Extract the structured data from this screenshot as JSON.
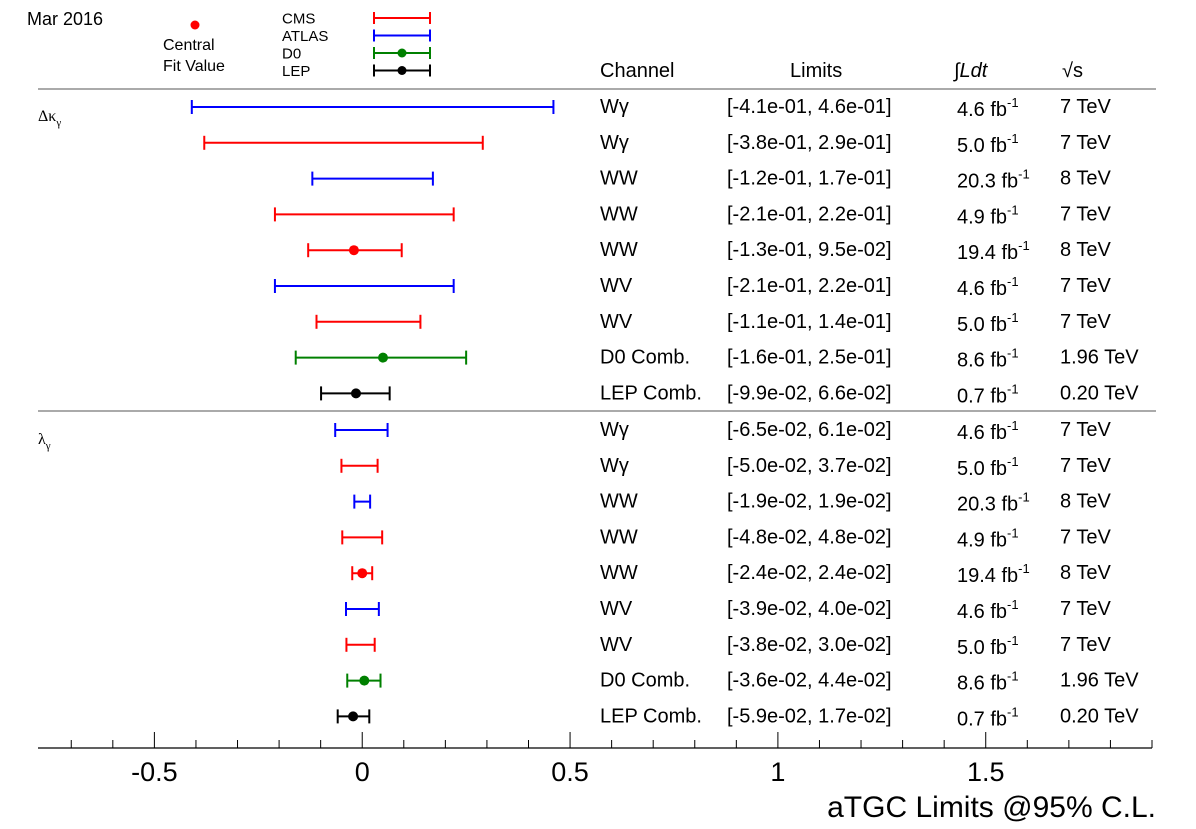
{
  "header": {
    "date": "Mar 2016",
    "central_fit_line1": "Central",
    "central_fit_line2": "Fit Value"
  },
  "legend": {
    "entries": [
      {
        "label": "CMS",
        "color": "#ff0000",
        "marker": false
      },
      {
        "label": "ATLAS",
        "color": "#0000ff",
        "marker": false
      },
      {
        "label": "D0",
        "color": "#008000",
        "marker": true
      },
      {
        "label": "LEP",
        "color": "#000000",
        "marker": true
      }
    ],
    "central_marker_color": "#ff0000"
  },
  "columns": {
    "channel": "Channel",
    "limits": "Limits",
    "lumi": "∫Ldt",
    "sqrt_s": "√s"
  },
  "footer": {
    "title": "aTGC Limits @95% C.L."
  },
  "chart_data": {
    "type": "interval",
    "title": "aTGC Limits @95% C.L.",
    "xlim": [
      -0.78,
      1.9
    ],
    "x_ticks": [
      -0.5,
      0,
      0.5,
      1,
      1.5
    ],
    "x_tick_labels": [
      "-0.5",
      "0",
      "0.5",
      "1",
      "1.5"
    ],
    "groups": [
      {
        "parameter": "Δκγ",
        "rows": [
          {
            "experiment": "ATLAS",
            "channel": "Wγ",
            "limits_text": "[-4.1e-01, 4.6e-01]",
            "lumi": "4.6",
            "energy": "7 TeV",
            "low": -0.41,
            "high": 0.46,
            "central": null
          },
          {
            "experiment": "CMS",
            "channel": "Wγ",
            "limits_text": "[-3.8e-01, 2.9e-01]",
            "lumi": "5.0",
            "energy": "7 TeV",
            "low": -0.38,
            "high": 0.29,
            "central": null
          },
          {
            "experiment": "ATLAS",
            "channel": "WW",
            "limits_text": "[-1.2e-01, 1.7e-01]",
            "lumi": "20.3",
            "energy": "8 TeV",
            "low": -0.12,
            "high": 0.17,
            "central": null
          },
          {
            "experiment": "CMS",
            "channel": "WW",
            "limits_text": "[-2.1e-01, 2.2e-01]",
            "lumi": "4.9",
            "energy": "7 TeV",
            "low": -0.21,
            "high": 0.22,
            "central": null
          },
          {
            "experiment": "CMS",
            "channel": "WW",
            "limits_text": "[-1.3e-01, 9.5e-02]",
            "lumi": "19.4",
            "energy": "8 TeV",
            "low": -0.13,
            "high": 0.095,
            "central": -0.02
          },
          {
            "experiment": "ATLAS",
            "channel": "WV",
            "limits_text": "[-2.1e-01, 2.2e-01]",
            "lumi": "4.6",
            "energy": "7 TeV",
            "low": -0.21,
            "high": 0.22,
            "central": null
          },
          {
            "experiment": "CMS",
            "channel": "WV",
            "limits_text": "[-1.1e-01, 1.4e-01]",
            "lumi": "5.0",
            "energy": "7 TeV",
            "low": -0.11,
            "high": 0.14,
            "central": null
          },
          {
            "experiment": "D0",
            "channel": "D0 Comb.",
            "limits_text": "[-1.6e-01, 2.5e-01]",
            "lumi": "8.6",
            "energy": "1.96 TeV",
            "low": -0.16,
            "high": 0.25,
            "central": 0.05
          },
          {
            "experiment": "LEP",
            "channel": "LEP Comb.",
            "limits_text": "[-9.9e-02, 6.6e-02]",
            "lumi": "0.7",
            "energy": "0.20 TeV",
            "low": -0.099,
            "high": 0.066,
            "central": -0.015
          }
        ]
      },
      {
        "parameter": "λγ",
        "rows": [
          {
            "experiment": "ATLAS",
            "channel": "Wγ",
            "limits_text": "[-6.5e-02, 6.1e-02]",
            "lumi": "4.6",
            "energy": "7 TeV",
            "low": -0.065,
            "high": 0.061,
            "central": null
          },
          {
            "experiment": "CMS",
            "channel": "Wγ",
            "limits_text": "[-5.0e-02, 3.7e-02]",
            "lumi": "5.0",
            "energy": "7 TeV",
            "low": -0.05,
            "high": 0.037,
            "central": null
          },
          {
            "experiment": "ATLAS",
            "channel": "WW",
            "limits_text": "[-1.9e-02, 1.9e-02]",
            "lumi": "20.3",
            "energy": "8 TeV",
            "low": -0.019,
            "high": 0.019,
            "central": null
          },
          {
            "experiment": "CMS",
            "channel": "WW",
            "limits_text": "[-4.8e-02, 4.8e-02]",
            "lumi": "4.9",
            "energy": "7 TeV",
            "low": -0.048,
            "high": 0.048,
            "central": null
          },
          {
            "experiment": "CMS",
            "channel": "WW",
            "limits_text": "[-2.4e-02, 2.4e-02]",
            "lumi": "19.4",
            "energy": "8 TeV",
            "low": -0.024,
            "high": 0.024,
            "central": 0.0
          },
          {
            "experiment": "ATLAS",
            "channel": "WV",
            "limits_text": "[-3.9e-02, 4.0e-02]",
            "lumi": "4.6",
            "energy": "7 TeV",
            "low": -0.039,
            "high": 0.04,
            "central": null
          },
          {
            "experiment": "CMS",
            "channel": "WV",
            "limits_text": "[-3.8e-02, 3.0e-02]",
            "lumi": "5.0",
            "energy": "7 TeV",
            "low": -0.038,
            "high": 0.03,
            "central": null
          },
          {
            "experiment": "D0",
            "channel": "D0 Comb.",
            "limits_text": "[-3.6e-02, 4.4e-02]",
            "lumi": "8.6",
            "energy": "1.96 TeV",
            "low": -0.036,
            "high": 0.044,
            "central": 0.005
          },
          {
            "experiment": "LEP",
            "channel": "LEP Comb.",
            "limits_text": "[-5.9e-02, 1.7e-02]",
            "lumi": "0.7",
            "energy": "0.20 TeV",
            "low": -0.059,
            "high": 0.017,
            "central": -0.022
          }
        ]
      }
    ],
    "colors": {
      "CMS": "#ff0000",
      "ATLAS": "#0000ff",
      "D0": "#008000",
      "LEP": "#000000"
    },
    "lumi_unit": "fb",
    "lumi_exponent": "-1"
  }
}
